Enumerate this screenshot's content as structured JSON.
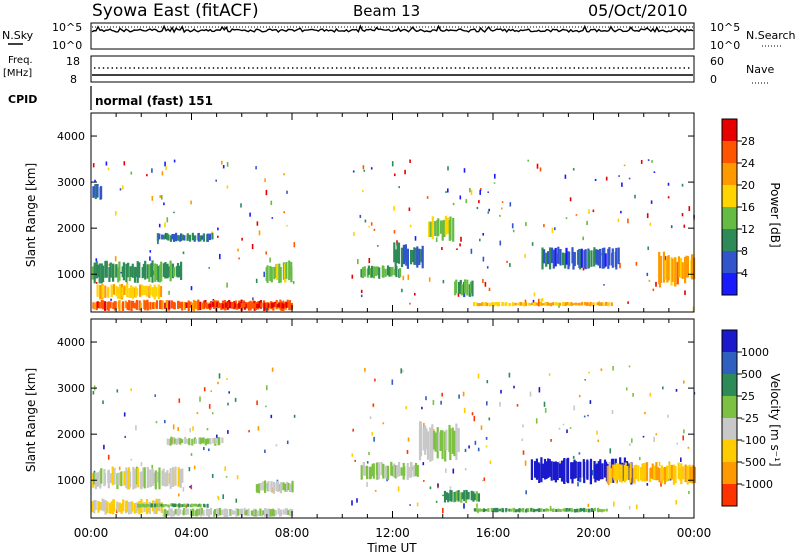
{
  "header": {
    "station": "Syowa East (fitACF)",
    "beam": "Beam 13",
    "date": "05/Oct/2010"
  },
  "noise_panel": {
    "left_label": "N.Sky",
    "right_label": "N.Search",
    "left_ticks": [
      "10^5",
      "10^0"
    ],
    "right_ticks": [
      "10^5",
      "10^0"
    ]
  },
  "freq_panel": {
    "left_label_1": "Freq.",
    "left_label_2": "[MHz]",
    "right_label": "Nave",
    "left_ticks": [
      "18",
      "8"
    ],
    "right_ticks": [
      "60",
      "0"
    ]
  },
  "cpid": {
    "label": "CPID",
    "text": "normal (fast) 151"
  },
  "x_axis": {
    "label": "Time UT",
    "ticks": [
      "00:00",
      "04:00",
      "08:00",
      "12:00",
      "16:00",
      "20:00",
      "00:00"
    ]
  },
  "y_axis": {
    "label": "Slant Range [km]",
    "ticks": [
      "1000",
      "2000",
      "3000",
      "4000"
    ]
  },
  "power_scale": {
    "label": "Power [dB]",
    "ticks": [
      "4",
      "8",
      "12",
      "16",
      "20",
      "24",
      "28"
    ],
    "colors": [
      "#1a1aff",
      "#3355cc",
      "#2e8b57",
      "#66bb44",
      "#ffd400",
      "#ff9900",
      "#ff5500",
      "#e60000"
    ]
  },
  "velocity_scale": {
    "label": "Velocity [m s⁻¹]",
    "ticks": [
      "1000",
      "500",
      "25",
      "-25",
      "-100",
      "-500",
      "-1000"
    ],
    "colors": [
      "#1a1acc",
      "#2f5fbf",
      "#2e8b57",
      "#7cc142",
      "#c8c8c8",
      "#ffcc00",
      "#ff9900",
      "#ff3300"
    ]
  },
  "chart_data": [
    {
      "type": "line",
      "title": "Syowa East (fitACF)",
      "series": [
        {
          "name": "N.Sky",
          "values": []
        }
      ],
      "ylim": [
        "10^0",
        "10^5"
      ],
      "xlim": [
        "00:00",
        "00:00"
      ]
    },
    {
      "type": "scatter",
      "series": [
        {
          "name": "Freq.",
          "values": []
        },
        {
          "name": "Nave",
          "values": []
        }
      ],
      "ylim": [
        8,
        18
      ]
    },
    {
      "type": "heatmap",
      "xlabel": "Time UT",
      "ylabel": "Slant Range [km]",
      "colorbar": "Power [dB]",
      "xlim": [
        "00:00",
        "24:00"
      ],
      "ylim": [
        180,
        4500
      ],
      "clim": [
        0,
        30
      ],
      "blocks": [
        {
          "t": [
            0.0,
            8.0
          ],
          "r": [
            200,
            450
          ],
          "v": 24
        },
        {
          "t": [
            0.2,
            2.8
          ],
          "r": [
            450,
            800
          ],
          "v": 18
        },
        {
          "t": [
            0.0,
            3.6
          ],
          "r": [
            800,
            1300
          ],
          "v": 10
        },
        {
          "t": [
            0.0,
            0.4
          ],
          "r": [
            2600,
            3000
          ],
          "v": 6
        },
        {
          "t": [
            2.6,
            4.8
          ],
          "r": [
            1700,
            1900
          ],
          "v": 8
        },
        {
          "t": [
            4.4,
            7.8
          ],
          "r": [
            250,
            400
          ],
          "v": 26
        },
        {
          "t": [
            6.9,
            8.0
          ],
          "r": [
            800,
            1300
          ],
          "v": 14
        },
        {
          "t": [
            10.7,
            12.3
          ],
          "r": [
            900,
            1200
          ],
          "v": 12
        },
        {
          "t": [
            12.0,
            13.2
          ],
          "r": [
            1100,
            1700
          ],
          "v": 8
        },
        {
          "t": [
            13.4,
            14.4
          ],
          "r": [
            1700,
            2300
          ],
          "v": 14
        },
        {
          "t": [
            14.4,
            15.2
          ],
          "r": [
            500,
            900
          ],
          "v": 10
        },
        {
          "t": [
            15.2,
            17.9
          ],
          "r": [
            300,
            400
          ],
          "v": 18
        },
        {
          "t": [
            17.9,
            21.0
          ],
          "r": [
            1100,
            1600
          ],
          "v": 6
        },
        {
          "t": [
            17.6,
            20.7
          ],
          "r": [
            300,
            400
          ],
          "v": 20
        },
        {
          "t": [
            22.5,
            24.0
          ],
          "r": [
            700,
            1500
          ],
          "v": 20
        }
      ]
    },
    {
      "type": "heatmap",
      "xlabel": "Time UT",
      "ylabel": "Slant Range [km]",
      "colorbar": "Velocity [m s⁻¹]",
      "xlim": [
        "00:00",
        "24:00"
      ],
      "ylim": [
        180,
        4500
      ],
      "clim": [
        -1000,
        1000
      ],
      "blocks": [
        {
          "t": [
            0.0,
            2.8
          ],
          "r": [
            250,
            600
          ],
          "v": -300
        },
        {
          "t": [
            0.0,
            3.6
          ],
          "r": [
            800,
            1300
          ],
          "v": -150
        },
        {
          "t": [
            2.8,
            8.0
          ],
          "r": [
            200,
            400
          ],
          "v": -60
        },
        {
          "t": [
            1.8,
            4.6
          ],
          "r": [
            400,
            500
          ],
          "v": 200
        },
        {
          "t": [
            3.0,
            5.2
          ],
          "r": [
            1750,
            1950
          ],
          "v": 0
        },
        {
          "t": [
            6.5,
            8.0
          ],
          "r": [
            700,
            1000
          ],
          "v": 0
        },
        {
          "t": [
            10.7,
            13.0
          ],
          "r": [
            1000,
            1400
          ],
          "v": 0
        },
        {
          "t": [
            13.0,
            14.6
          ],
          "r": [
            1400,
            2300
          ],
          "v": 0
        },
        {
          "t": [
            14.0,
            15.4
          ],
          "r": [
            500,
            800
          ],
          "v": 300
        },
        {
          "t": [
            15.2,
            20.5
          ],
          "r": [
            300,
            400
          ],
          "v": 250
        },
        {
          "t": [
            17.5,
            21.5
          ],
          "r": [
            900,
            1500
          ],
          "v": 900
        },
        {
          "t": [
            20.5,
            24.0
          ],
          "r": [
            900,
            1400
          ],
          "v": -400
        }
      ]
    }
  ]
}
